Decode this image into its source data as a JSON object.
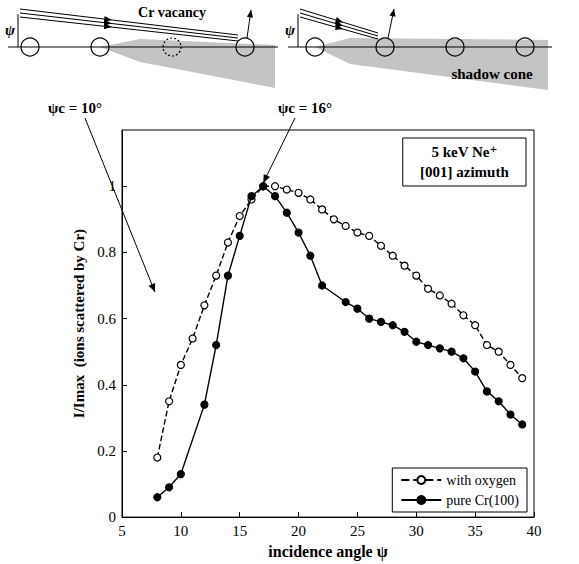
{
  "chart_data": {
    "type": "line",
    "xlabel": "incidence angle ψ",
    "ylabel": "I/Imax  (ions scattered by Cr)",
    "xlim": [
      5,
      40
    ],
    "xticks": [
      5,
      10,
      15,
      20,
      25,
      30,
      35,
      40
    ],
    "ylim": [
      0,
      1.17
    ],
    "yticks": [
      0,
      0.2,
      0.4,
      0.6,
      0.8,
      1
    ],
    "legend": "lower right",
    "info_box": [
      "5 keV Ne⁺",
      "[001] azimuth"
    ],
    "annotations": [
      {
        "text": "ψc = 10°",
        "xy": [
          7.8,
          0.68
        ]
      },
      {
        "text": "ψc = 16°",
        "xy": [
          17,
          1.01
        ]
      }
    ],
    "diagram": {
      "angle": "ψ",
      "vacancy": "Cr vacancy",
      "shadow": "shadow cone"
    },
    "series": [
      {
        "name": "with oxygen",
        "color": "#000000",
        "line_style": "dashed",
        "marker": "open circle",
        "x": [
          8,
          9,
          10,
          11,
          12,
          13,
          14,
          15,
          16,
          17,
          18,
          19,
          20,
          21,
          22,
          23,
          24,
          25,
          26,
          27,
          28,
          29,
          30,
          31,
          32,
          33,
          34,
          35,
          36,
          37,
          38,
          39
        ],
        "values": [
          0.18,
          0.35,
          0.46,
          0.54,
          0.64,
          0.73,
          0.83,
          0.91,
          0.96,
          1.0,
          1.0,
          0.99,
          0.98,
          0.96,
          0.93,
          0.9,
          0.88,
          0.86,
          0.85,
          0.82,
          0.79,
          0.76,
          0.73,
          0.69,
          0.67,
          0.645,
          0.61,
          0.58,
          0.52,
          0.5,
          0.46,
          0.42
        ]
      },
      {
        "name": "pure Cr(100)",
        "color": "#000000",
        "line_style": "solid",
        "marker": "filled circle",
        "x": [
          8,
          9,
          10,
          12,
          13,
          14,
          15,
          16,
          17,
          18,
          19,
          20,
          21,
          22,
          24,
          25,
          26,
          27,
          28,
          29,
          30,
          31,
          32,
          33,
          34,
          35,
          36,
          37,
          38,
          39
        ],
        "values": [
          0.06,
          0.09,
          0.13,
          0.34,
          0.52,
          0.73,
          0.85,
          0.97,
          1.0,
          0.97,
          0.92,
          0.86,
          0.79,
          0.7,
          0.65,
          0.63,
          0.6,
          0.59,
          0.58,
          0.56,
          0.53,
          0.52,
          0.51,
          0.5,
          0.48,
          0.44,
          0.38,
          0.35,
          0.31,
          0.28
        ]
      }
    ]
  }
}
